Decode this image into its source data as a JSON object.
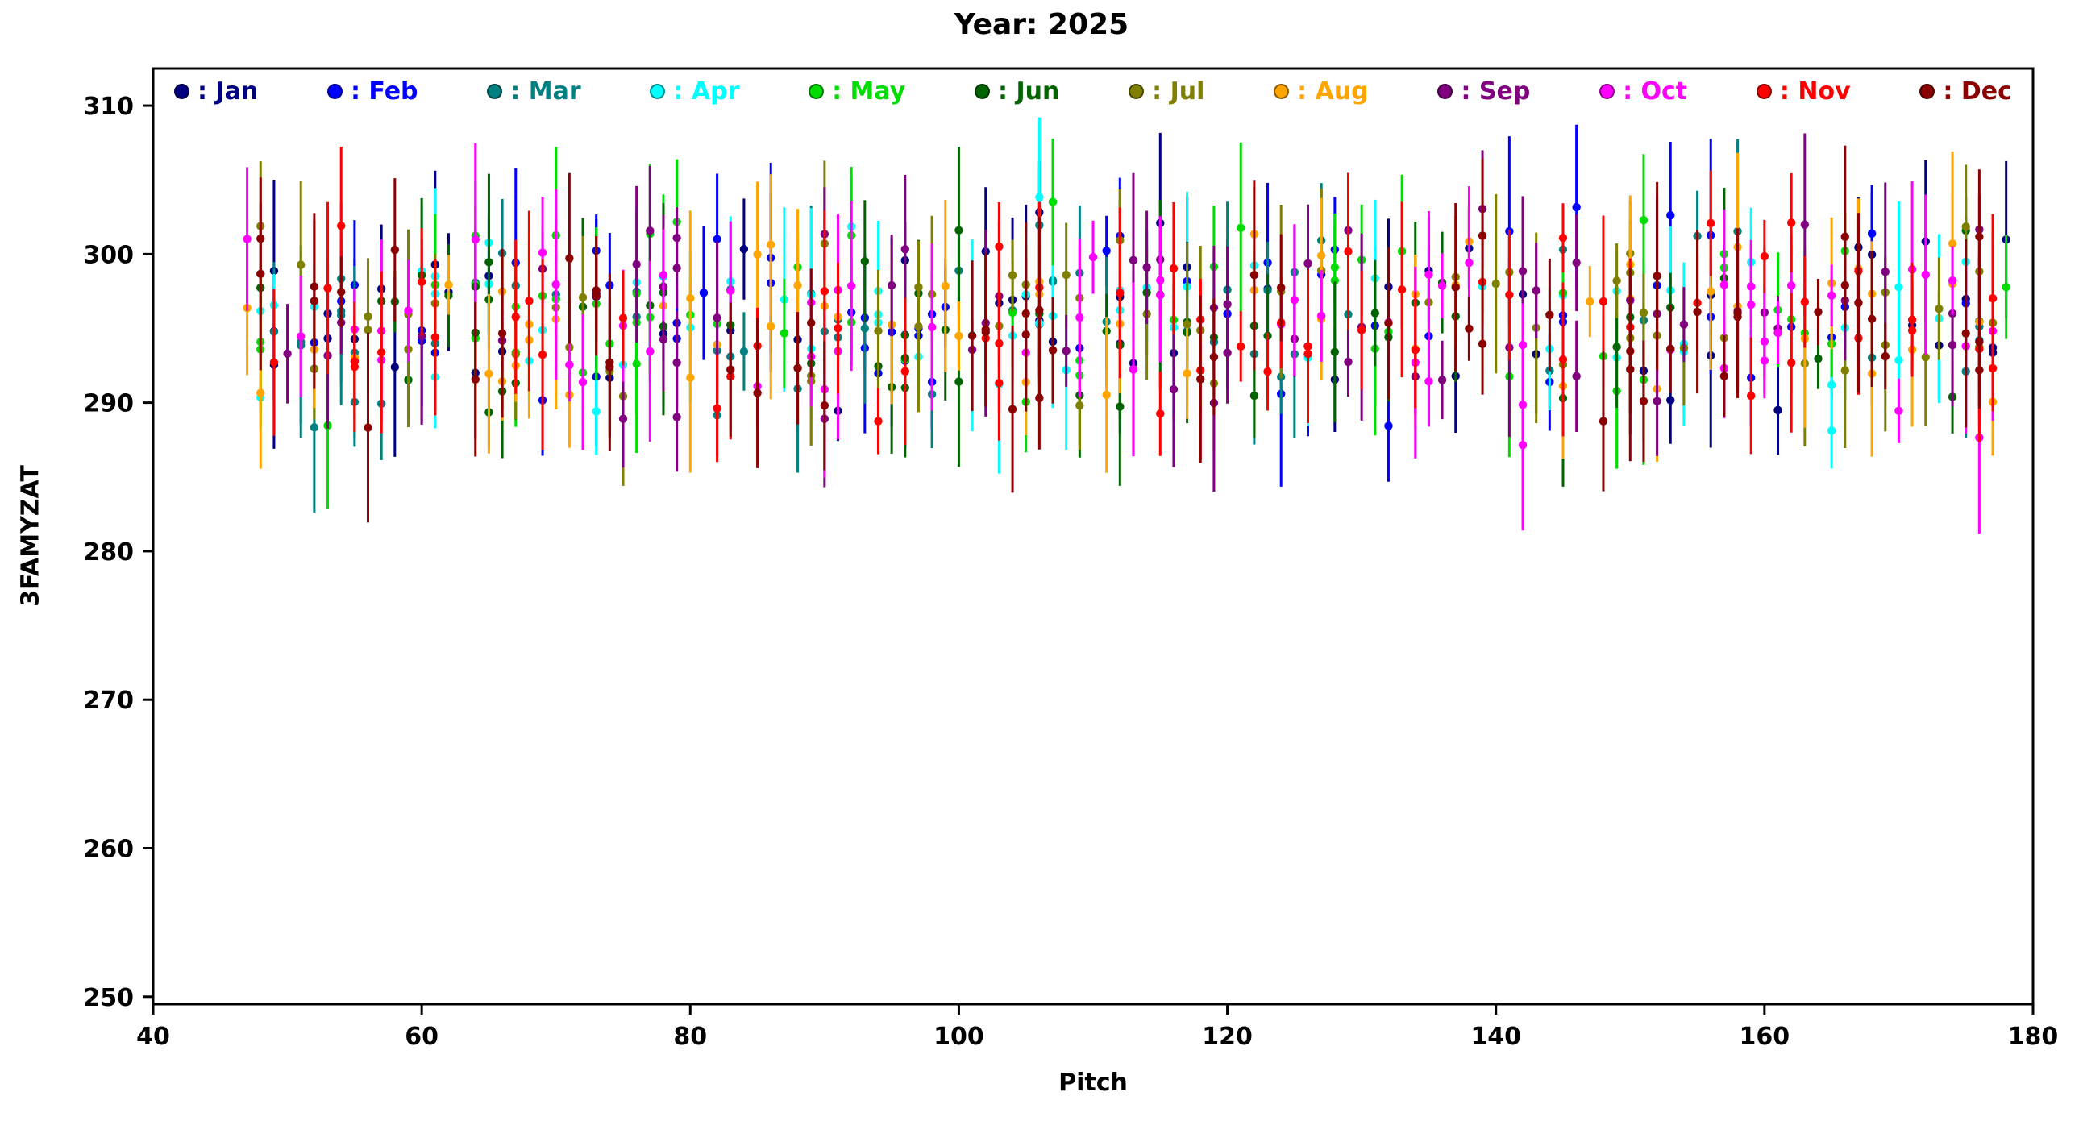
{
  "chart_data": {
    "type": "scatter",
    "subtype": "errorbar",
    "title": "Year: 2025",
    "xlabel": "Pitch",
    "ylabel": "3FAMYZAT",
    "xlim": [
      40,
      180
    ],
    "ylim": [
      249.5,
      312.5
    ],
    "x_ticks": [
      40,
      60,
      80,
      100,
      120,
      140,
      160,
      180
    ],
    "y_ticks": [
      250,
      260,
      270,
      280,
      290,
      300,
      310
    ],
    "grid": false,
    "legend_position": "top-inside",
    "legend_label_prefix": ": ",
    "marker": "circle",
    "series": [
      {
        "name": "Jan",
        "color": "#000080"
      },
      {
        "name": "Feb",
        "color": "#0000ff"
      },
      {
        "name": "Mar",
        "color": "#008080"
      },
      {
        "name": "Apr",
        "color": "#00ffff"
      },
      {
        "name": "May",
        "color": "#00dd00"
      },
      {
        "name": "Jun",
        "color": "#006400"
      },
      {
        "name": "Jul",
        "color": "#808000"
      },
      {
        "name": "Aug",
        "color": "#ffa500"
      },
      {
        "name": "Sep",
        "color": "#800080"
      },
      {
        "name": "Oct",
        "color": "#ff00ff"
      },
      {
        "name": "Nov",
        "color": "#ff0000"
      },
      {
        "name": "Dec",
        "color": "#8b0000"
      }
    ],
    "generation": {
      "seed": 20251337,
      "points_per_month": 58,
      "x_range": [
        47,
        178
      ],
      "x_integer": true,
      "y_center": 295.5,
      "y_sigma": 3.1,
      "y_clamp": [
        284.2,
        305.8
      ],
      "err_range": [
        2.0,
        6.5
      ]
    }
  }
}
